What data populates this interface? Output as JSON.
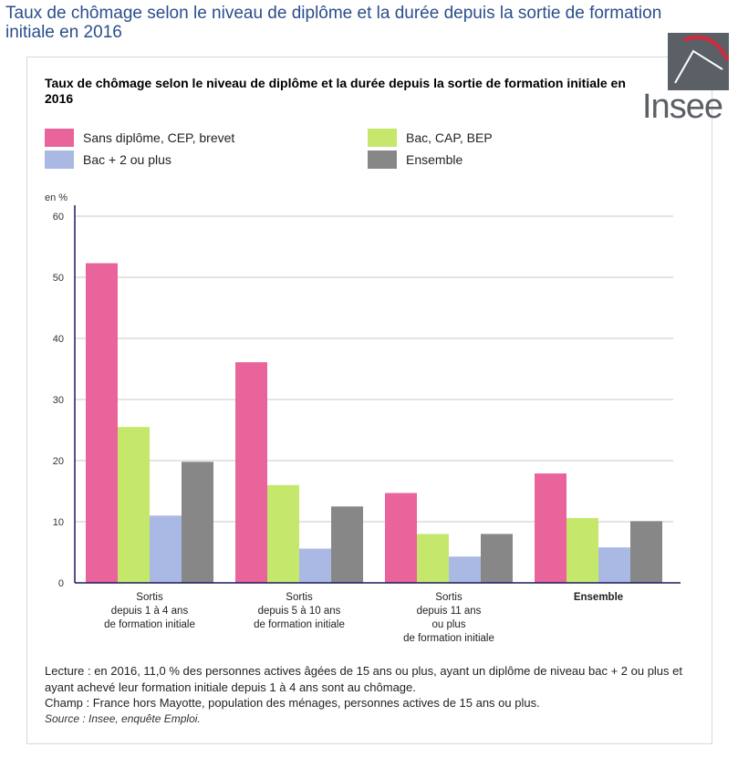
{
  "page": {
    "title": "Taux de chômage selon le niveau de diplôme et la durée depuis la sortie de formation initiale en 2016"
  },
  "logo": {
    "text": "Insee"
  },
  "colors": {
    "sans_diplome": "#e8649a",
    "bac_cap_bep": "#c5e86c",
    "bac2": "#a9b9e4",
    "ensemble": "#878787",
    "axis": "#1a1a5e",
    "grid": "#c8c8c8",
    "title": "#2a4e8c"
  },
  "chart_data": {
    "type": "bar",
    "title": "Taux de chômage selon le niveau de diplôme et la durée depuis la sortie de formation initiale en 2016",
    "ylabel": "en %",
    "xlabel": "",
    "ylim": [
      0,
      60
    ],
    "yticks": [
      0,
      10,
      20,
      30,
      40,
      50,
      60
    ],
    "grid": true,
    "legend_position": "top",
    "categories": [
      "Sortis\ndepuis 1 à 4 ans\nde formation initiale",
      "Sortis\ndepuis 5 à 10 ans\nde formation initiale",
      "Sortis\ndepuis 11 ans\nou plus\nde formation initiale",
      "Ensemble"
    ],
    "series": [
      {
        "name": "Sans diplôme, CEP, brevet",
        "color": "#e8649a",
        "values": [
          52.3,
          36.1,
          14.7,
          17.9
        ]
      },
      {
        "name": "Bac, CAP, BEP",
        "color": "#c5e86c",
        "values": [
          25.5,
          16.0,
          8.0,
          10.6
        ]
      },
      {
        "name": "Bac + 2 ou plus",
        "color": "#a9b9e4",
        "values": [
          11.0,
          5.6,
          4.3,
          5.8
        ]
      },
      {
        "name": "Ensemble",
        "color": "#878787",
        "values": [
          19.8,
          12.5,
          8.0,
          10.1
        ]
      }
    ]
  },
  "notes": {
    "lecture": "Lecture : en 2016, 11,0 % des personnes actives âgées de 15 ans ou plus, ayant un diplôme de niveau bac + 2 ou plus et ayant achevé leur formation initiale depuis 1 à 4 ans sont au chômage.",
    "champ": "Champ : France hors Mayotte, population des ménages, personnes actives de 15 ans ou plus.",
    "source": "Source : Insee, enquête Emploi."
  }
}
